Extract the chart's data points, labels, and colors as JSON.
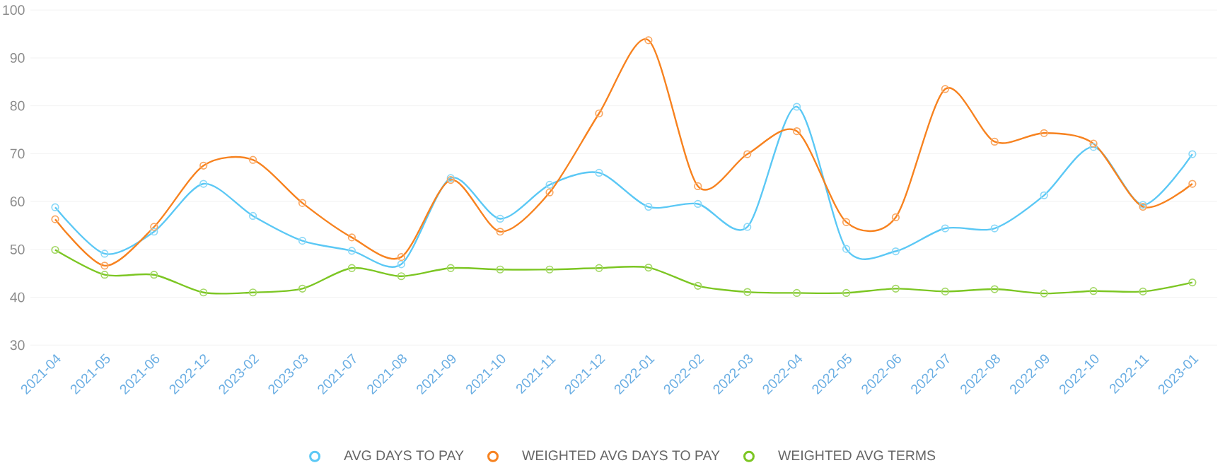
{
  "chart_data": {
    "type": "line",
    "categories": [
      "2021-04",
      "2021-05",
      "2021-06",
      "2022-12",
      "2023-02",
      "2023-03",
      "2021-07",
      "2021-08",
      "2021-09",
      "2021-10",
      "2021-11",
      "2021-12",
      "2022-01",
      "2022-02",
      "2022-03",
      "2022-04",
      "2022-05",
      "2022-06",
      "2022-07",
      "2022-08",
      "2022-09",
      "2022-10",
      "2022-11",
      "2023-01"
    ],
    "series": [
      {
        "name": "AVG DAYS TO PAY",
        "color": "#5bc8f5",
        "values": [
          58.8,
          49.1,
          53.7,
          63.7,
          57.0,
          51.8,
          49.7,
          46.9,
          64.9,
          56.4,
          63.5,
          66.0,
          58.9,
          59.5,
          54.7,
          79.8,
          50.1,
          49.6,
          54.4,
          54.4,
          61.3,
          71.4,
          59.3,
          69.9
        ]
      },
      {
        "name": "WEIGHTED AVG DAYS TO PAY",
        "color": "#f7821f",
        "values": [
          56.3,
          46.6,
          54.7,
          67.5,
          68.7,
          59.7,
          52.5,
          48.4,
          64.5,
          53.7,
          61.9,
          78.4,
          93.7,
          63.2,
          69.9,
          74.7,
          55.7,
          56.7,
          83.5,
          72.5,
          74.3,
          72.1,
          58.9,
          63.7
        ]
      },
      {
        "name": "WEIGHTED AVG TERMS",
        "color": "#7cc623",
        "values": [
          49.9,
          44.7,
          44.7,
          41.0,
          41.0,
          41.8,
          46.1,
          44.4,
          46.1,
          45.8,
          45.8,
          46.1,
          46.2,
          42.4,
          41.1,
          40.9,
          40.9,
          41.8,
          41.2,
          41.7,
          40.8,
          41.3,
          41.2,
          43.1
        ]
      }
    ],
    "ylim": [
      30,
      100
    ],
    "yticks": [
      30,
      40,
      50,
      60,
      70,
      80,
      90,
      100
    ],
    "grid": "y",
    "legend": "bottom",
    "marker": "circle",
    "line_style": "solid"
  }
}
